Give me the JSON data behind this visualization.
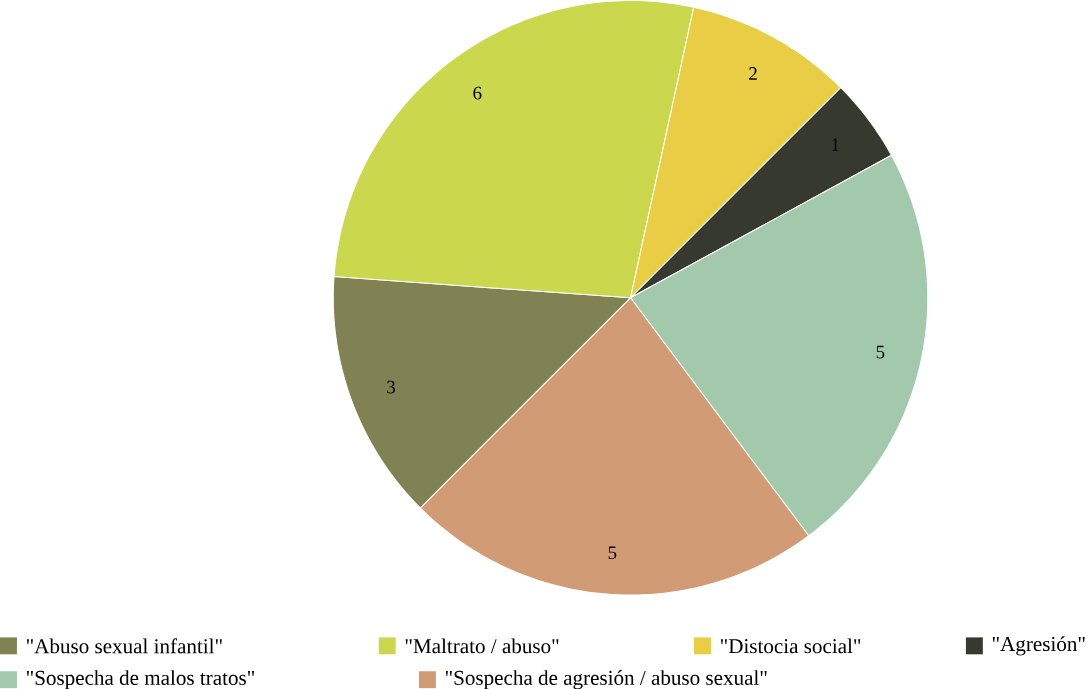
{
  "chart_data": {
    "type": "pie",
    "categories": [
      "\"Abuso sexual infantil\"",
      "\"Maltrato / abuso\"",
      "\"Distocia social\"",
      "\"Agresión\"",
      "\"Sospecha de malos tratos\"",
      "\"Sospecha de agresión / abuso sexual\""
    ],
    "values": [
      3,
      6,
      2,
      1,
      5,
      5
    ],
    "colors": [
      "#808254",
      "#cbd84e",
      "#e9cd45",
      "#363a2e",
      "#a3c9ad",
      "#d19b76"
    ],
    "data_labels": true,
    "legend": "bottom"
  }
}
